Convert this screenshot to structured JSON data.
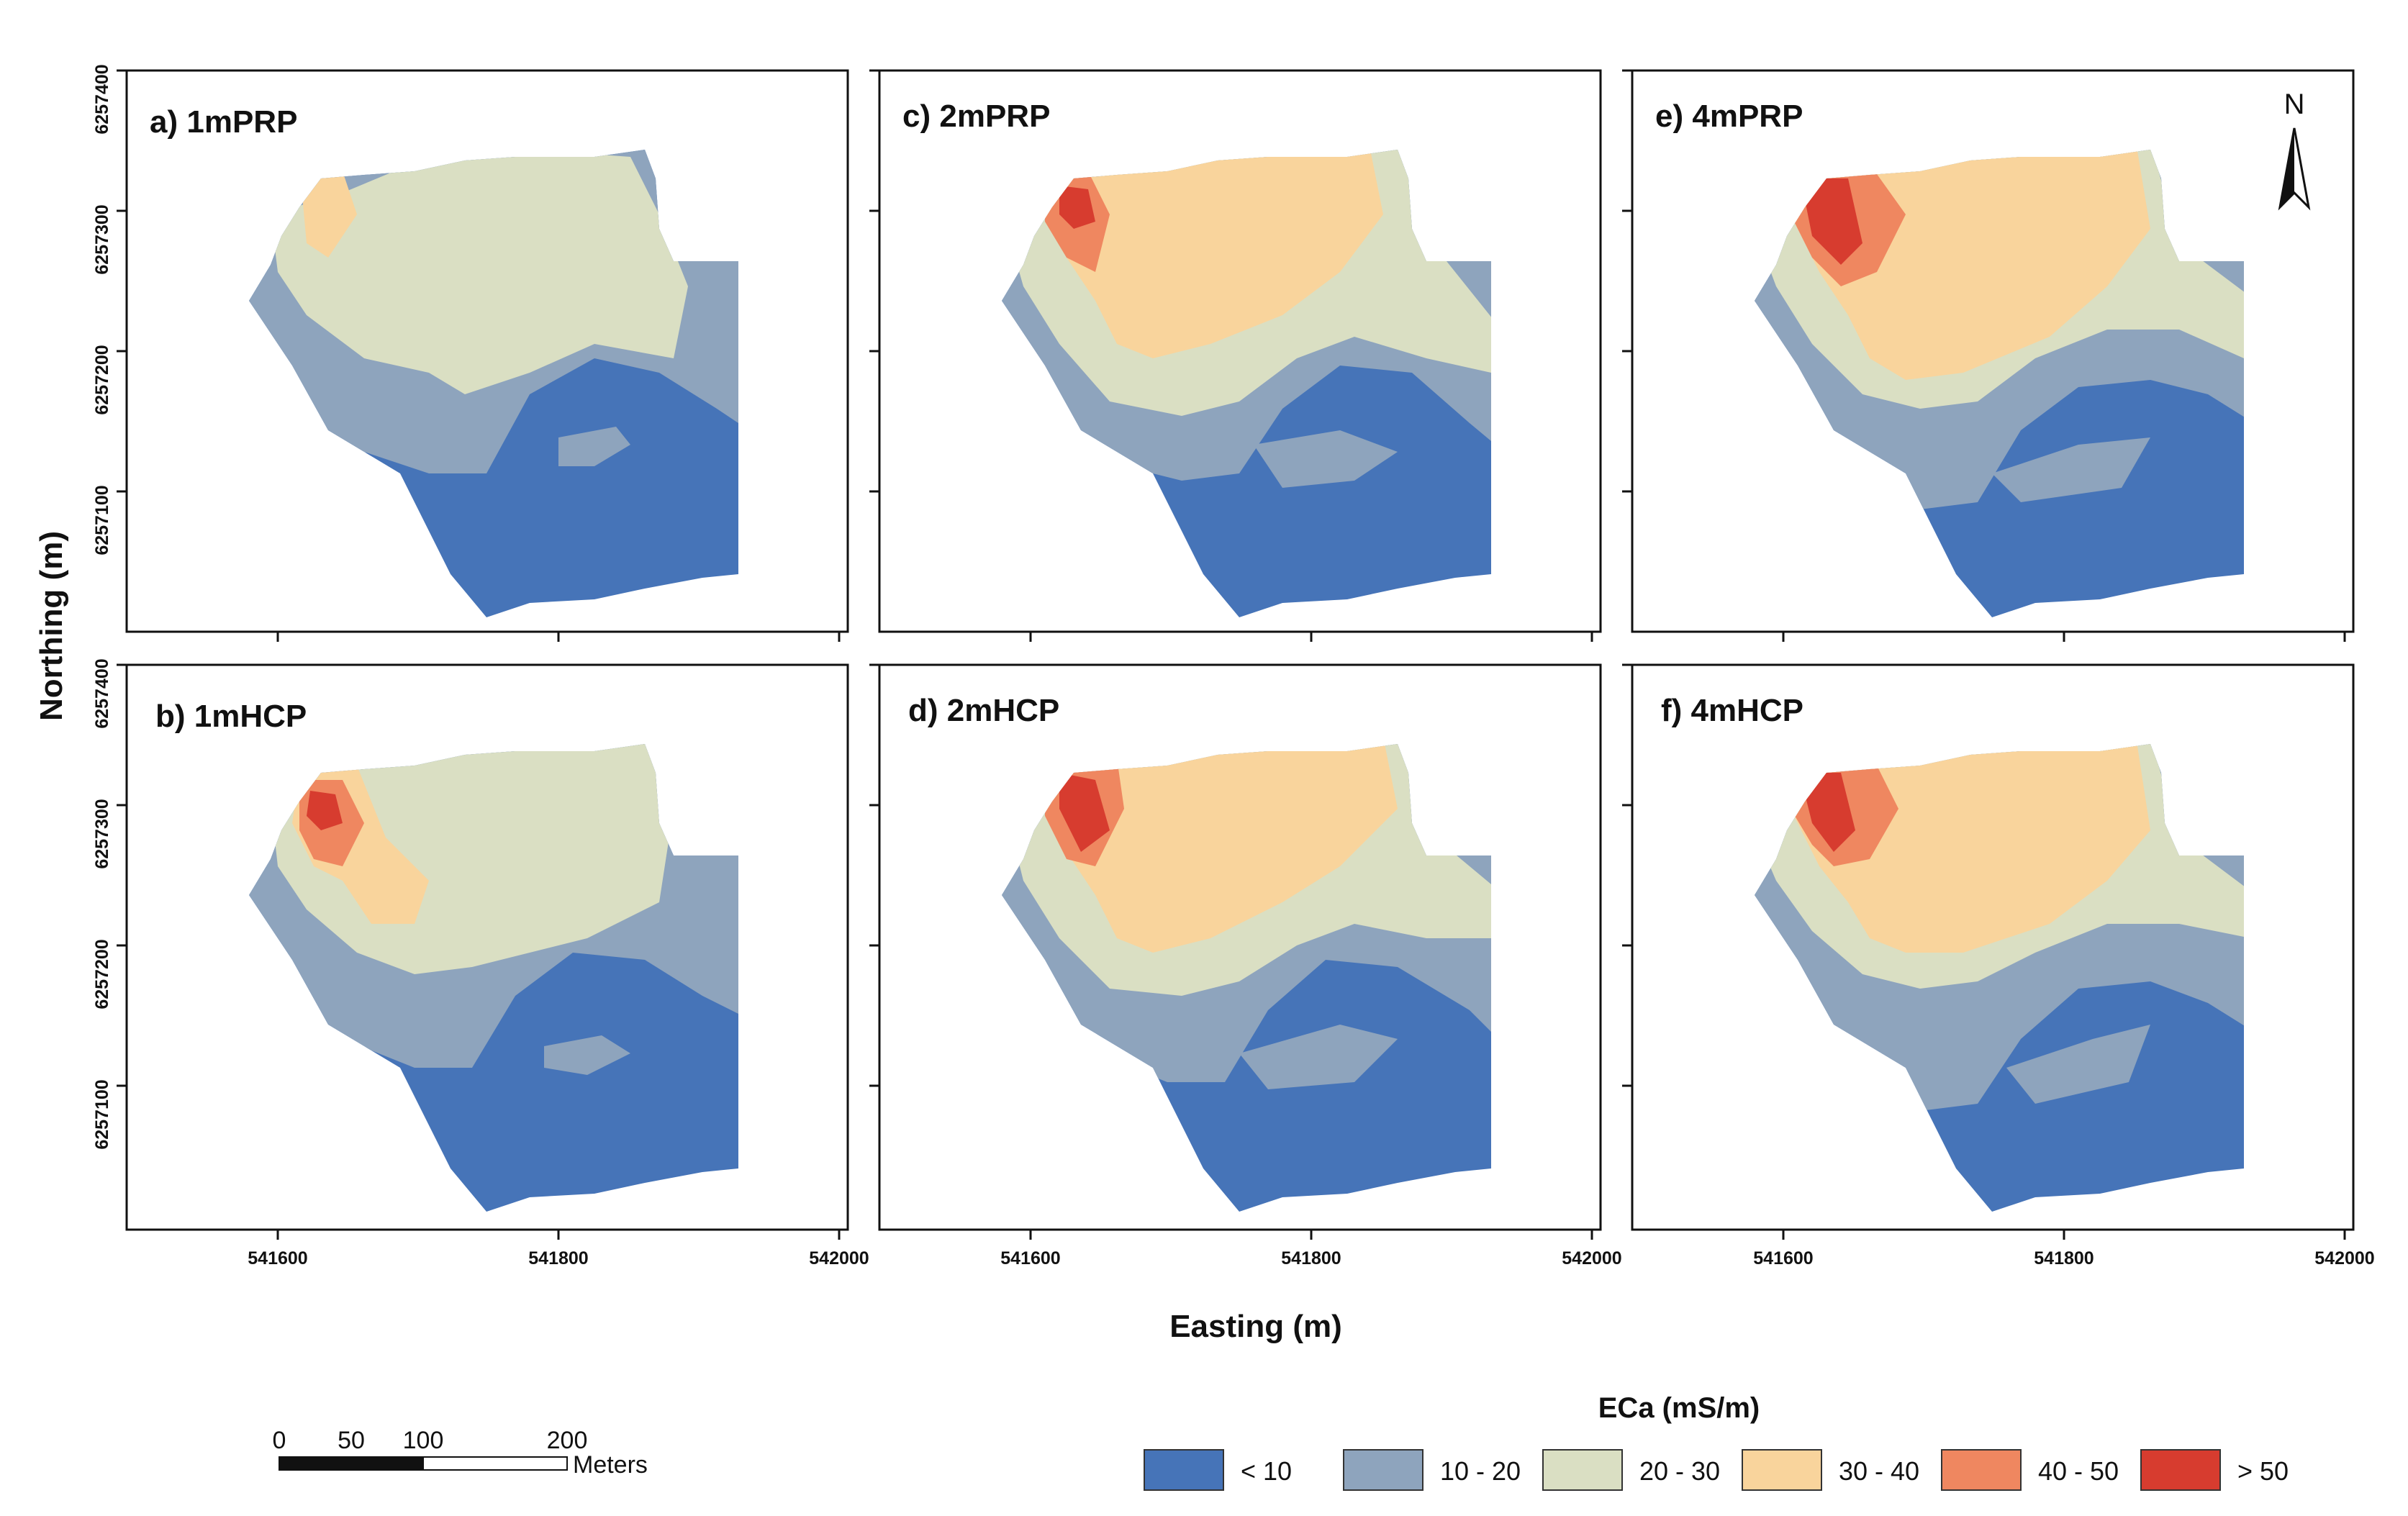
{
  "chart_data": {
    "type": "map",
    "x_axis_title": "Easting (m)",
    "y_axis_title": "Northing (m)",
    "x_ticks": [
      "541600",
      "541800",
      "542000"
    ],
    "y_ticks": [
      "6257400",
      "6257300",
      "6257200",
      "6257100"
    ],
    "panels": [
      {
        "id": "a",
        "label": "a) 1mPRP"
      },
      {
        "id": "b",
        "label": "b) 1mHCP"
      },
      {
        "id": "c",
        "label": "c) 2mPRP"
      },
      {
        "id": "d",
        "label": "d) 2mHCP"
      },
      {
        "id": "e",
        "label": "e) 4mPRP"
      },
      {
        "id": "f",
        "label": "f) 4mHCP"
      }
    ],
    "legend": {
      "title": "ECa (mS/m)",
      "classes": [
        {
          "label": "< 10",
          "color": "#4674b8"
        },
        {
          "label": "10 - 20",
          "color": "#8ea4bd"
        },
        {
          "label": "20 - 30",
          "color": "#dadfc3"
        },
        {
          "label": "30 - 40",
          "color": "#f9d49c"
        },
        {
          "label": "40 - 50",
          "color": "#ef8760"
        },
        {
          "label": "> 50",
          "color": "#d73c2f"
        }
      ]
    },
    "scale_bar": {
      "labels": [
        "0",
        "50",
        "100",
        "200"
      ],
      "unit": "Meters"
    },
    "north_arrow": "N"
  }
}
